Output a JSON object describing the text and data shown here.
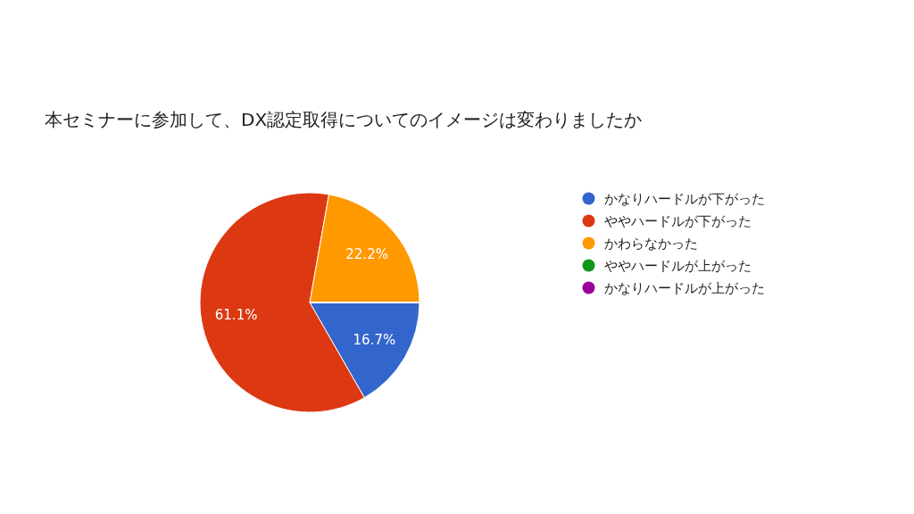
{
  "chart_data": {
    "type": "pie",
    "title": "本セミナーに参加して、DX認定取得についてのイメージは変わりましたか",
    "categories": [
      "かなりハードルが下がった",
      "ややハードルが下がった",
      "かわらなかった",
      "ややハードルが上がった",
      "かなりハードルが上がった"
    ],
    "values": [
      16.7,
      61.1,
      22.2,
      0,
      0
    ],
    "colors": [
      "#3366cc",
      "#dc3912",
      "#ff9900",
      "#109618",
      "#990099"
    ],
    "value_labels": [
      "16.7%",
      "61.1%",
      "22.2%",
      null,
      null
    ],
    "legend": "right"
  }
}
